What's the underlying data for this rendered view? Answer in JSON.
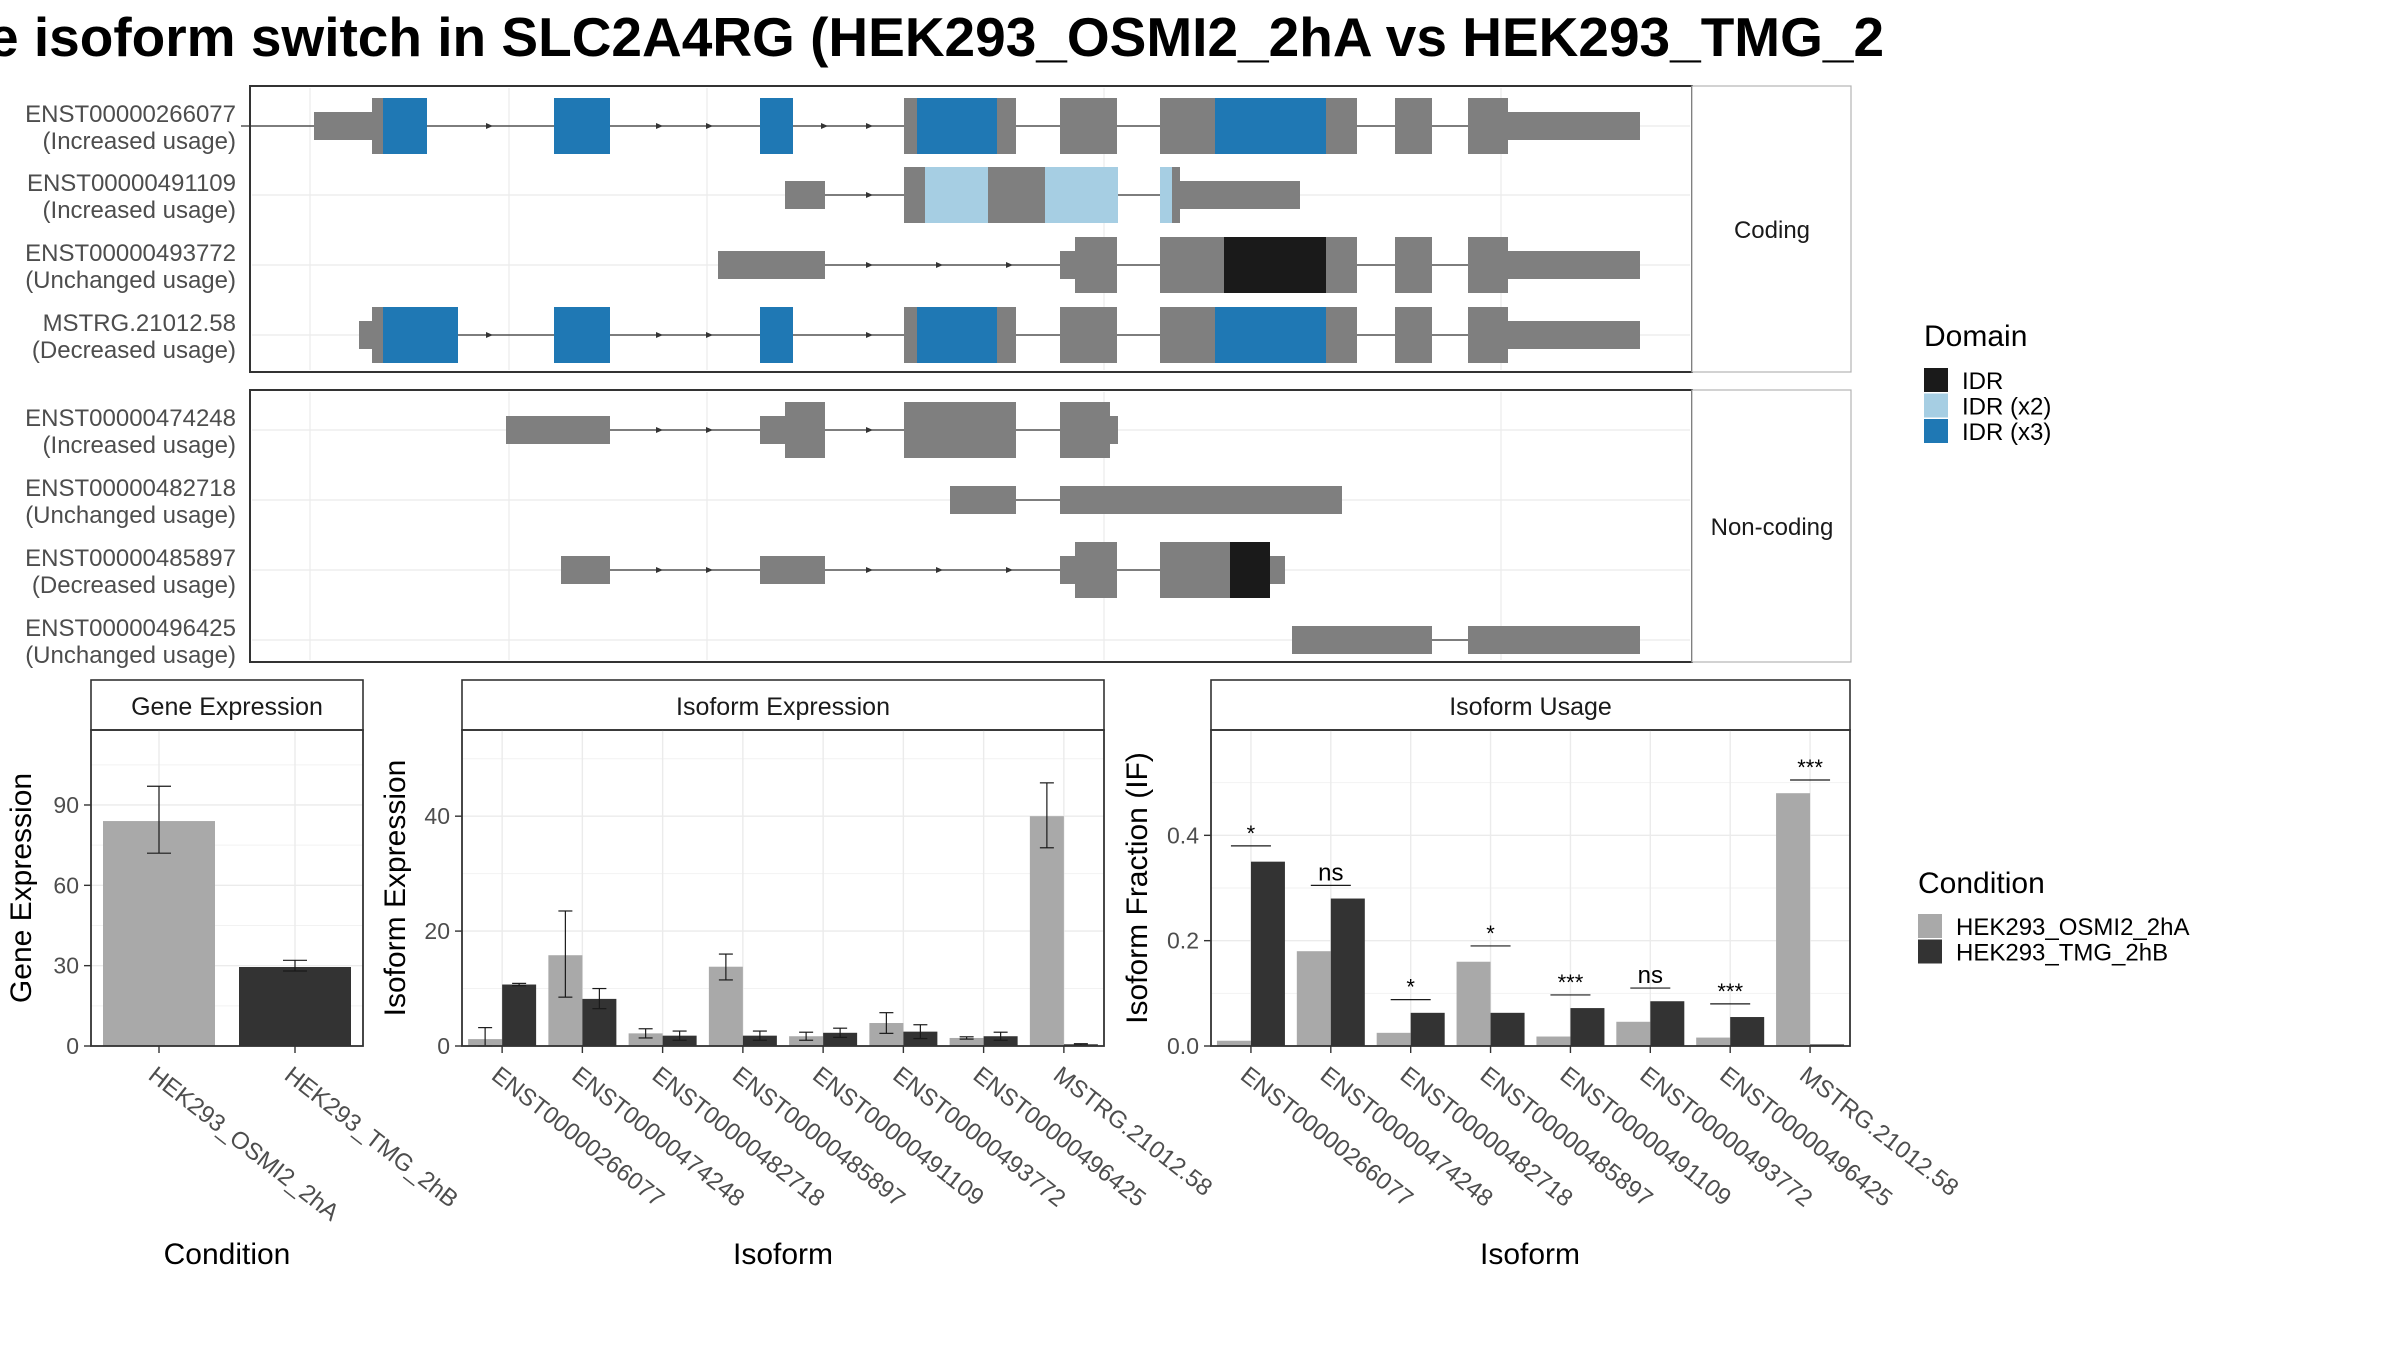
{
  "title": "e isoform switch in SLC2A4RG (HEK293_OSMI2_2hA vs HEK293_TMG_2",
  "colors": {
    "exon": "#7f7f7f",
    "IDR": "#1a1a1a",
    "IDR (x2)": "#a6cee3",
    "IDR (x3)": "#1f78b4",
    "HEK293_OSMI2_2hA": "#a9a9a9",
    "HEK293_TMG_2hB": "#333333"
  },
  "transcripts": {
    "groups": [
      {
        "label": "Coding",
        "rows": [
          {
            "id": "ENST00000266077",
            "usage": "(Increased usage)"
          },
          {
            "id": "ENST00000491109",
            "usage": "(Increased usage)"
          },
          {
            "id": "ENST00000493772",
            "usage": "(Unchanged usage)"
          },
          {
            "id": "MSTRG.21012.58",
            "usage": "(Decreased usage)"
          }
        ]
      },
      {
        "label": "Non-coding",
        "rows": [
          {
            "id": "ENST00000474248",
            "usage": "(Increased usage)"
          },
          {
            "id": "ENST00000482718",
            "usage": "(Unchanged usage)"
          },
          {
            "id": "ENST00000485897",
            "usage": "(Decreased usage)"
          },
          {
            "id": "ENST00000496425",
            "usage": "(Unchanged usage)"
          }
        ]
      }
    ]
  },
  "legends": {
    "domain": {
      "title": "Domain",
      "items": [
        "IDR",
        "IDR (x2)",
        "IDR (x3)"
      ]
    },
    "condition": {
      "title": "Condition",
      "items": [
        "HEK293_OSMI2_2hA",
        "HEK293_TMG_2hB"
      ]
    }
  },
  "chart_data": [
    {
      "type": "bar",
      "title": "Gene Expression",
      "xlabel": "Condition",
      "ylabel": "Gene Expression",
      "categories": [
        "HEK293_OSMI2_2hA",
        "HEK293_TMG_2hB"
      ],
      "values": [
        84,
        29.5
      ],
      "errors": [
        [
          72,
          97
        ],
        [
          28,
          32
        ]
      ],
      "ylim": [
        0,
        118
      ],
      "yticks": [
        0,
        30,
        60,
        90
      ],
      "grid": true
    },
    {
      "type": "bar",
      "title": "Isoform Expression",
      "xlabel": "Isoform",
      "ylabel": "Isoform Expression",
      "categories": [
        "ENST00000266077",
        "ENST00000474248",
        "ENST00000482718",
        "ENST00000485897",
        "ENST00000491109",
        "ENST00000493772",
        "ENST00000496425",
        "MSTRG.21012.58"
      ],
      "series": [
        {
          "name": "HEK293_OSMI2_2hA",
          "values": [
            1.2,
            15.8,
            2.2,
            13.8,
            1.7,
            4.0,
            1.4,
            40.0
          ],
          "errors": [
            [
              0,
              3.2
            ],
            [
              8.5,
              23.5
            ],
            [
              1.4,
              3.0
            ],
            [
              11.5,
              16.0
            ],
            [
              1.0,
              2.4
            ],
            [
              2.2,
              5.8
            ],
            [
              1.2,
              1.6
            ],
            [
              34.5,
              45.8
            ]
          ]
        },
        {
          "name": "HEK293_TMG_2hB",
          "values": [
            10.7,
            8.2,
            1.8,
            1.8,
            2.3,
            2.5,
            1.7,
            0.3
          ],
          "errors": [
            [
              10.5,
              10.9
            ],
            [
              6.5,
              10.0
            ],
            [
              1.0,
              2.6
            ],
            [
              1.0,
              2.6
            ],
            [
              1.5,
              3.1
            ],
            [
              1.3,
              3.7
            ],
            [
              1.0,
              2.4
            ],
            [
              0.2,
              0.4
            ]
          ]
        }
      ],
      "ylim": [
        0,
        55
      ],
      "yticks": [
        0,
        20,
        40
      ],
      "grid": true
    },
    {
      "type": "bar",
      "title": "Isoform Usage",
      "xlabel": "Isoform",
      "ylabel": "Isoform Fraction (IF)",
      "categories": [
        "ENST00000266077",
        "ENST00000474248",
        "ENST00000482718",
        "ENST00000485897",
        "ENST00000491109",
        "ENST00000493772",
        "ENST00000496425",
        "MSTRG.21012.58"
      ],
      "series": [
        {
          "name": "HEK293_OSMI2_2hA",
          "values": [
            0.01,
            0.18,
            0.025,
            0.16,
            0.018,
            0.046,
            0.016,
            0.48
          ]
        },
        {
          "name": "HEK293_TMG_2hB",
          "values": [
            0.35,
            0.28,
            0.063,
            0.063,
            0.072,
            0.085,
            0.055,
            0.003
          ]
        }
      ],
      "significance": [
        "*",
        "ns",
        "*",
        "*",
        "***",
        "ns",
        "***",
        "***"
      ],
      "significance_y": [
        0.38,
        0.305,
        0.088,
        0.19,
        0.097,
        0.11,
        0.08,
        0.505
      ],
      "ylim": [
        0,
        0.6
      ],
      "yticks": [
        0.0,
        0.2,
        0.4
      ],
      "ytick_labels": [
        "0.0",
        "0.2",
        "0.4"
      ],
      "grid": true
    }
  ]
}
